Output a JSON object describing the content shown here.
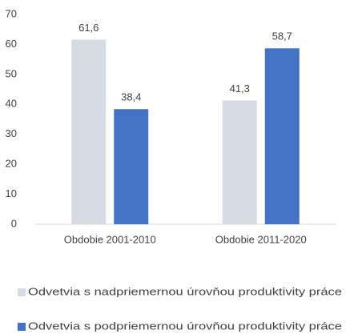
{
  "chart_data": {
    "type": "bar",
    "categories": [
      "Obdobie 2001-2010",
      "Obdobie 2011-2020"
    ],
    "series": [
      {
        "name": "Odvetvia s nadpriemernou úrovňou produktivity práce",
        "color": "#d6dce4",
        "values": [
          61.6,
          41.3
        ],
        "value_labels": [
          "61,6",
          "41,3"
        ]
      },
      {
        "name": "Odvetvia s podpriemernou úrovňou produktivity práce",
        "color": "#4472c4",
        "values": [
          38.4,
          58.7
        ],
        "value_labels": [
          "38,4",
          "58,7"
        ]
      }
    ],
    "ylim": [
      0,
      70
    ],
    "yticks": [
      0,
      10,
      20,
      30,
      40,
      50,
      60,
      70
    ],
    "grid": false,
    "legend": "bottom"
  }
}
